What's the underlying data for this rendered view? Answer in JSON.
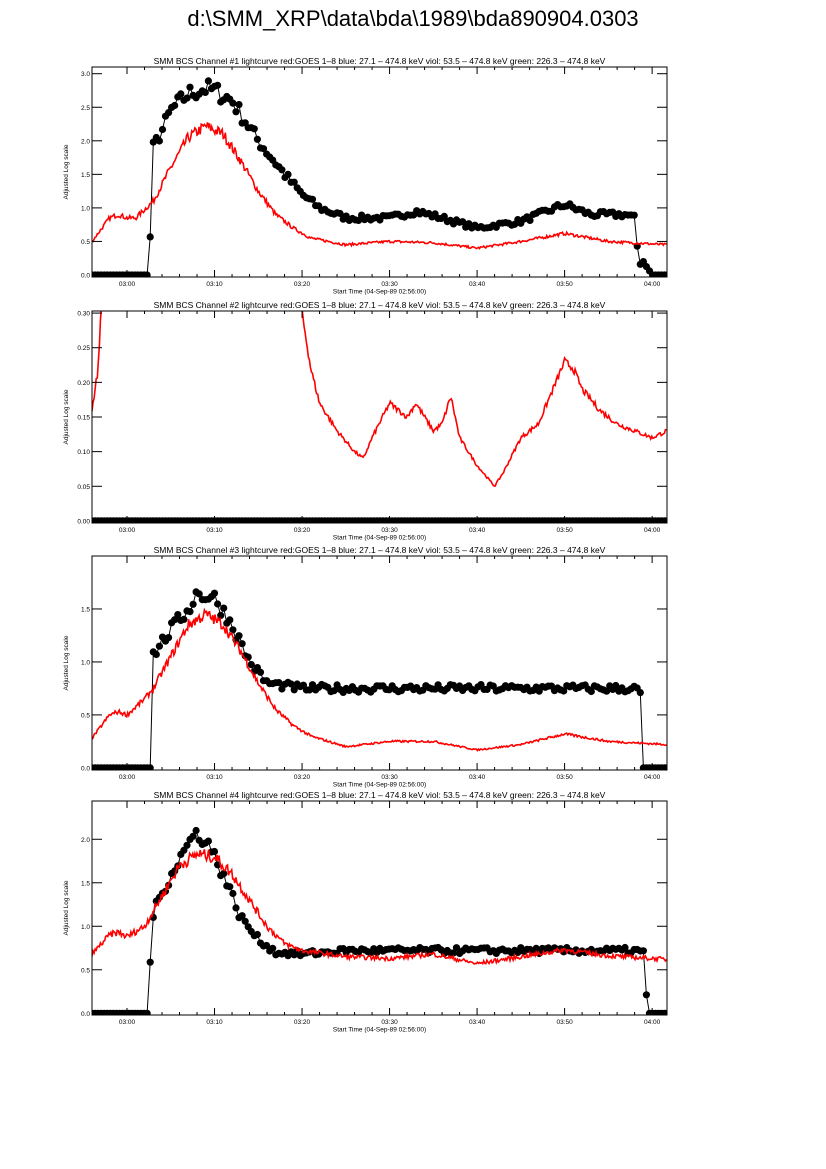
{
  "page_title": "d:\\SMM_XRP\\data\\bda\\1989\\bda890904.0303",
  "colors": {
    "goes": "#ff0000",
    "bcs": "#000000"
  },
  "chart_data": [
    {
      "type": "scatter+line",
      "title": "SMM BCS Channel #1 lightcurve  red:GOES 1–8  blue: 27.1 – 474.8 keV  viol: 53.5 – 474.8 keV  green: 226.3 – 474.8 keV",
      "xlabel": "Start Time (04-Sep-89 02:56:00)",
      "ylabel": "Adjusted Log scale",
      "ylim": [
        -0.03,
        3.1
      ],
      "yticks": [
        "0.0",
        "0.5",
        "1.0",
        "1.5",
        "2.0",
        "2.5",
        "3.0"
      ],
      "xticks": [
        "03:00",
        "03:10",
        "03:20",
        "03:30",
        "03:40",
        "03:50",
        "04:00"
      ],
      "series": [
        {
          "name": "BCS",
          "color": "#000000",
          "points": [
            [
              "02:56",
              0
            ],
            [
              "03:02.5",
              0
            ],
            [
              "03:03",
              1.9
            ],
            [
              "03:04",
              2.15
            ],
            [
              "03:05",
              2.45
            ],
            [
              "03:07",
              2.7
            ],
            [
              "03:09",
              2.78
            ],
            [
              "03:10",
              2.75
            ],
            [
              "03:12",
              2.6
            ],
            [
              "03:15",
              2.0
            ],
            [
              "03:18",
              1.5
            ],
            [
              "03:20",
              1.2
            ],
            [
              "03:22",
              1.0
            ],
            [
              "03:25",
              0.85
            ],
            [
              "03:30",
              0.85
            ],
            [
              "03:33",
              0.95
            ],
            [
              "03:36",
              0.85
            ],
            [
              "03:40",
              0.7
            ],
            [
              "03:45",
              0.8
            ],
            [
              "03:48",
              0.95
            ],
            [
              "03:50",
              1.05
            ],
            [
              "03:53",
              0.9
            ],
            [
              "03:57",
              0.9
            ],
            [
              "03:58",
              0.85
            ],
            [
              "03:58.5",
              0.15
            ],
            [
              "03:59",
              0.2
            ],
            [
              "04:00",
              0
            ]
          ]
        },
        {
          "name": "GOES 1-8",
          "color": "#ff0000",
          "points": [
            [
              "02:56",
              0.5
            ],
            [
              "02:58",
              0.85
            ],
            [
              "02:59",
              0.9
            ],
            [
              "03:00",
              0.85
            ],
            [
              "03:01",
              0.85
            ],
            [
              "03:03",
              1.1
            ],
            [
              "03:05",
              1.6
            ],
            [
              "03:07",
              2.05
            ],
            [
              "03:09",
              2.22
            ],
            [
              "03:11",
              2.1
            ],
            [
              "03:13",
              1.7
            ],
            [
              "03:15",
              1.25
            ],
            [
              "03:17",
              0.9
            ],
            [
              "03:19",
              0.7
            ],
            [
              "03:21",
              0.55
            ],
            [
              "03:25",
              0.45
            ],
            [
              "03:30",
              0.5
            ],
            [
              "03:35",
              0.48
            ],
            [
              "03:40",
              0.4
            ],
            [
              "03:45",
              0.5
            ],
            [
              "03:50",
              0.62
            ],
            [
              "03:55",
              0.5
            ],
            [
              "04:01.7",
              0.45
            ]
          ]
        }
      ]
    },
    {
      "type": "scatter+line",
      "title": "SMM BCS Channel #2 lightcurve  red:GOES 1–8  blue: 27.1 – 474.8 keV  viol: 53.5 – 474.8 keV  green: 226.3 – 474.8 keV",
      "xlabel": "Start Time (04-Sep-89 02:56:00)",
      "ylabel": "Adjusted Log scale",
      "ylim": [
        -0.003,
        0.303
      ],
      "yticks": [
        "0.00",
        "0.05",
        "0.10",
        "0.15",
        "0.20",
        "0.25",
        "0.30"
      ],
      "xticks": [
        "03:00",
        "03:10",
        "03:20",
        "03:30",
        "03:40",
        "03:50",
        "04:00"
      ],
      "series": [
        {
          "name": "BCS",
          "color": "#000000",
          "points": [
            [
              "02:56",
              0
            ],
            [
              "04:01.7",
              0
            ]
          ]
        },
        {
          "name": "GOES 1-8",
          "color": "#ff0000",
          "points": [
            [
              "02:56",
              0.16
            ],
            [
              "02:56.7",
              0.22
            ],
            [
              "02:57.2",
              0.35
            ],
            [
              "03:19",
              0.35
            ],
            [
              "03:20",
              0.3
            ],
            [
              "03:21",
              0.22
            ],
            [
              "03:22",
              0.17
            ],
            [
              "03:24",
              0.13
            ],
            [
              "03:26",
              0.1
            ],
            [
              "03:27",
              0.09
            ],
            [
              "03:28",
              0.12
            ],
            [
              "03:30",
              0.17
            ],
            [
              "03:32",
              0.15
            ],
            [
              "03:33",
              0.17
            ],
            [
              "03:35",
              0.13
            ],
            [
              "03:36",
              0.14
            ],
            [
              "03:37",
              0.18
            ],
            [
              "03:38",
              0.12
            ],
            [
              "03:40",
              0.08
            ],
            [
              "03:42",
              0.05
            ],
            [
              "03:43",
              0.07
            ],
            [
              "03:45",
              0.12
            ],
            [
              "03:47",
              0.14
            ],
            [
              "03:49",
              0.2
            ],
            [
              "03:50",
              0.23
            ],
            [
              "03:51",
              0.22
            ],
            [
              "03:52",
              0.19
            ],
            [
              "03:54",
              0.16
            ],
            [
              "03:56",
              0.14
            ],
            [
              "03:58",
              0.13
            ],
            [
              "04:00",
              0.12
            ],
            [
              "04:01.7",
              0.13
            ]
          ]
        }
      ]
    },
    {
      "type": "scatter+line",
      "title": "SMM BCS Channel #3 lightcurve  red:GOES 1–8  blue: 27.1 – 474.8 keV  viol: 53.5 – 474.8 keV  green: 226.3 – 474.8 keV",
      "xlabel": "Start Time (04-Sep-89 02:56:00)",
      "ylabel": "Adjusted Log scale",
      "ylim": [
        -0.02,
        2.0
      ],
      "yticks": [
        "0.0",
        "0.5",
        "1.0",
        "1.5"
      ],
      "xticks": [
        "03:00",
        "03:10",
        "03:20",
        "03:30",
        "03:40",
        "03:50",
        "04:00"
      ],
      "series": [
        {
          "name": "BCS",
          "color": "#000000",
          "points": [
            [
              "02:56",
              0
            ],
            [
              "03:02.8",
              0
            ],
            [
              "03:03",
              1.07
            ],
            [
              "03:05",
              1.3
            ],
            [
              "03:07",
              1.5
            ],
            [
              "03:08",
              1.65
            ],
            [
              "03:10",
              1.6
            ],
            [
              "03:12",
              1.35
            ],
            [
              "03:14",
              1.0
            ],
            [
              "03:16",
              0.8
            ],
            [
              "03:20",
              0.75
            ],
            [
              "03:58",
              0.75
            ],
            [
              "03:58.8",
              0.7
            ],
            [
              "03:59",
              0
            ],
            [
              "04:00",
              0
            ]
          ]
        },
        {
          "name": "GOES 1-8",
          "color": "#ff0000",
          "points": [
            [
              "02:56",
              0.28
            ],
            [
              "02:58",
              0.5
            ],
            [
              "02:59",
              0.53
            ],
            [
              "03:00",
              0.5
            ],
            [
              "03:02",
              0.65
            ],
            [
              "03:03",
              0.75
            ],
            [
              "03:05",
              1.05
            ],
            [
              "03:07",
              1.35
            ],
            [
              "03:09",
              1.45
            ],
            [
              "03:11",
              1.35
            ],
            [
              "03:13",
              1.1
            ],
            [
              "03:15",
              0.8
            ],
            [
              "03:17",
              0.55
            ],
            [
              "03:19",
              0.4
            ],
            [
              "03:21",
              0.3
            ],
            [
              "03:25",
              0.2
            ],
            [
              "03:30",
              0.25
            ],
            [
              "03:35",
              0.25
            ],
            [
              "03:40",
              0.17
            ],
            [
              "03:45",
              0.22
            ],
            [
              "03:50",
              0.32
            ],
            [
              "03:55",
              0.25
            ],
            [
              "04:01.7",
              0.22
            ]
          ]
        }
      ]
    },
    {
      "type": "scatter+line",
      "title": "SMM BCS Channel #4 lightcurve  red:GOES 1–8  blue: 27.1 – 474.8 keV  viol: 53.5 – 474.8 keV  green: 226.3 – 474.8 keV",
      "xlabel": "Start Time (04-Sep-89 02:56:00)",
      "ylabel": "Adjusted Log scale",
      "ylim": [
        -0.02,
        2.44
      ],
      "yticks": [
        "0.0",
        "0.5",
        "1.0",
        "1.5",
        "2.0"
      ],
      "xticks": [
        "03:00",
        "03:10",
        "03:20",
        "03:30",
        "03:40",
        "03:50",
        "04:00"
      ],
      "series": [
        {
          "name": "BCS",
          "color": "#000000",
          "points": [
            [
              "02:56",
              0
            ],
            [
              "03:02.3",
              0
            ],
            [
              "03:03",
              1.15
            ],
            [
              "03:05",
              1.6
            ],
            [
              "03:07",
              1.95
            ],
            [
              "03:08",
              2.08
            ],
            [
              "03:09",
              2.0
            ],
            [
              "03:11",
              1.6
            ],
            [
              "03:13",
              1.1
            ],
            [
              "03:15",
              0.85
            ],
            [
              "03:17",
              0.7
            ],
            [
              "03:20",
              0.68
            ],
            [
              "03:25",
              0.72
            ],
            [
              "03:58",
              0.72
            ],
            [
              "03:59",
              0.7
            ],
            [
              "03:59.5",
              0
            ],
            [
              "04:00",
              0
            ]
          ]
        },
        {
          "name": "GOES 1-8",
          "color": "#ff0000",
          "points": [
            [
              "02:56",
              0.68
            ],
            [
              "02:58",
              0.9
            ],
            [
              "02:59",
              0.93
            ],
            [
              "03:00",
              0.88
            ],
            [
              "03:02",
              1.0
            ],
            [
              "03:04",
              1.35
            ],
            [
              "03:06",
              1.7
            ],
            [
              "03:08",
              1.83
            ],
            [
              "03:10",
              1.8
            ],
            [
              "03:12",
              1.6
            ],
            [
              "03:14",
              1.3
            ],
            [
              "03:16",
              1.0
            ],
            [
              "03:18",
              0.8
            ],
            [
              "03:20",
              0.72
            ],
            [
              "03:25",
              0.65
            ],
            [
              "03:30",
              0.63
            ],
            [
              "03:35",
              0.68
            ],
            [
              "03:40",
              0.57
            ],
            [
              "03:45",
              0.65
            ],
            [
              "03:50",
              0.73
            ],
            [
              "03:55",
              0.66
            ],
            [
              "04:01.7",
              0.62
            ]
          ]
        }
      ]
    }
  ]
}
